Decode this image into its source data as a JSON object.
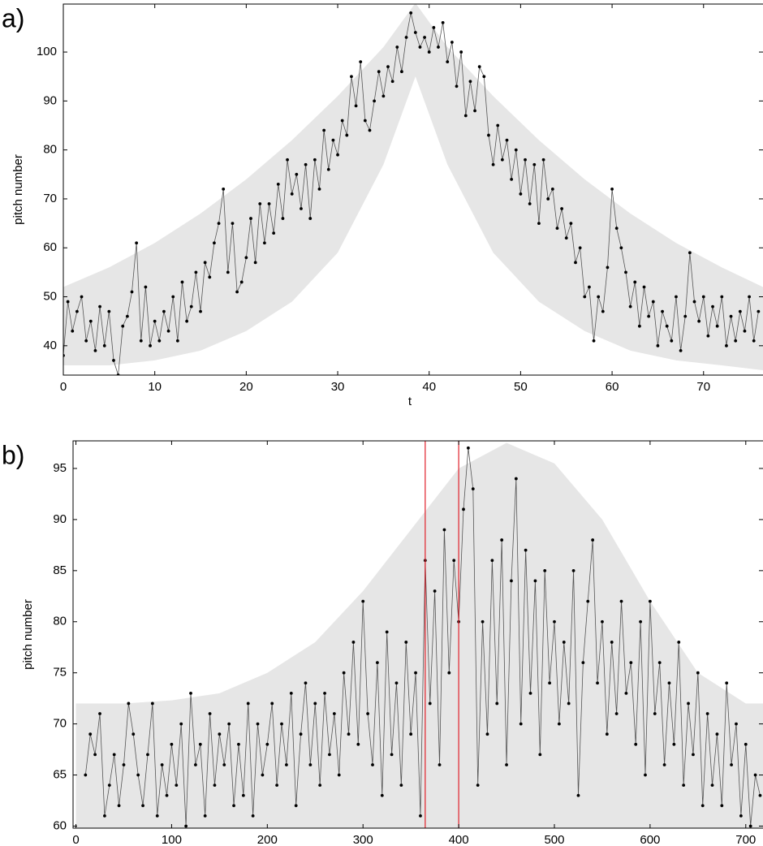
{
  "chart_data": [
    {
      "type": "line",
      "panel_label": "a)",
      "xlabel": "t",
      "ylabel": "pitch number",
      "xlim": [
        0,
        76.5
      ],
      "ylim": [
        34,
        109.8
      ],
      "xticks": [
        0,
        10,
        20,
        30,
        40,
        50,
        60,
        70
      ],
      "yticks": [
        40,
        50,
        60,
        70,
        80,
        90,
        100
      ],
      "band": {
        "color": "#e6e6e6",
        "x": [
          0,
          5,
          10,
          15,
          20,
          25,
          30,
          35,
          38.5,
          42,
          47,
          52,
          57,
          62,
          67,
          72,
          76.5
        ],
        "upper": [
          52,
          56,
          61,
          67,
          74,
          82,
          91,
          101,
          110,
          101,
          91,
          82,
          74,
          67,
          61,
          56,
          52
        ],
        "lower": [
          36,
          36,
          37,
          39,
          43,
          49,
          59,
          77,
          95,
          77,
          59,
          49,
          43,
          39,
          37,
          36,
          35
        ]
      },
      "x": [
        0,
        0.5,
        1,
        1.5,
        2,
        2.5,
        3,
        3.5,
        4,
        4.5,
        5,
        5.5,
        6,
        6.5,
        7,
        7.5,
        8,
        8.5,
        9,
        9.5,
        10,
        10.5,
        11,
        11.5,
        12,
        12.5,
        13,
        13.5,
        14,
        14.5,
        15,
        15.5,
        16,
        16.5,
        17,
        17.5,
        18,
        18.5,
        19,
        19.5,
        20,
        20.5,
        21,
        21.5,
        22,
        22.5,
        23,
        23.5,
        24,
        24.5,
        25,
        25.5,
        26,
        26.5,
        27,
        27.5,
        28,
        28.5,
        29,
        29.5,
        30,
        30.5,
        31,
        31.5,
        32,
        32.5,
        33,
        33.5,
        34,
        34.5,
        35,
        35.5,
        36,
        36.5,
        37,
        37.5,
        38,
        38.5,
        39,
        39.5,
        40,
        40.5,
        41,
        41.5,
        42,
        42.5,
        43,
        43.5,
        44,
        44.5,
        45,
        45.5,
        46,
        46.5,
        47,
        47.5,
        48,
        48.5,
        49,
        49.5,
        50,
        50.5,
        51,
        51.5,
        52,
        52.5,
        53,
        53.5,
        54,
        54.5,
        55,
        55.5,
        56,
        56.5,
        57,
        57.5,
        58,
        58.5,
        59,
        59.5,
        60,
        60.5,
        61,
        61.5,
        62,
        62.5,
        63,
        63.5,
        64,
        64.5,
        65,
        65.5,
        66,
        66.5,
        67,
        67.5,
        68,
        68.5,
        69,
        69.5,
        70,
        70.5,
        71,
        71.5,
        72,
        72.5,
        73,
        73.5,
        74,
        74.5,
        75,
        75.5,
        76
      ],
      "series": [
        {
          "color": "#000000",
          "values": [
            38,
            49,
            43,
            47,
            50,
            41,
            45,
            39,
            48,
            40,
            47,
            37,
            34,
            44,
            46,
            51,
            61,
            41,
            52,
            40,
            45,
            41,
            47,
            43,
            50,
            41,
            53,
            45,
            48,
            55,
            47,
            57,
            54,
            61,
            65,
            72,
            55,
            65,
            51,
            53,
            58,
            66,
            57,
            69,
            61,
            69,
            63,
            73,
            66,
            78,
            71,
            75,
            68,
            77,
            66,
            78,
            72,
            84,
            76,
            82,
            79,
            86,
            83,
            95,
            89,
            98,
            86,
            84,
            90,
            96,
            91,
            97,
            94,
            101,
            96,
            103,
            108,
            104,
            101,
            103,
            100,
            105,
            101,
            106,
            98,
            102,
            93,
            100,
            87,
            94,
            88,
            97,
            95,
            83,
            77,
            85,
            78,
            82,
            74,
            80,
            71,
            78,
            69,
            77,
            65,
            78,
            70,
            72,
            64,
            68,
            62,
            65,
            57,
            60,
            50,
            52,
            41,
            50,
            47,
            56,
            72,
            64,
            60,
            55,
            48,
            53,
            44,
            52,
            46,
            49,
            40,
            47,
            44,
            41,
            50,
            39,
            46,
            59,
            49,
            45,
            50,
            42,
            48,
            44,
            50,
            40,
            46,
            41,
            47,
            43,
            50,
            41,
            47
          ]
        }
      ]
    },
    {
      "type": "line",
      "panel_label": "b)",
      "xlabel": "t",
      "ylabel": "pitch number",
      "xlim": [
        -3,
        718
      ],
      "ylim": [
        59.8,
        97.7
      ],
      "xticks": [
        0,
        100,
        200,
        300,
        400,
        500,
        600,
        700
      ],
      "yticks": [
        60,
        65,
        70,
        75,
        80,
        85,
        90,
        95
      ],
      "band": {
        "color": "#e6e6e6",
        "x": [
          0,
          50,
          100,
          150,
          200,
          250,
          300,
          350,
          400,
          450,
          500,
          550,
          600,
          650,
          700,
          718
        ],
        "upper": [
          72,
          72,
          72.3,
          73,
          75,
          78,
          83,
          89,
          95,
          97.5,
          95.5,
          90,
          82,
          75,
          72,
          72
        ],
        "lower": [
          59.8,
          59.8,
          59.8,
          59.8,
          59.8,
          59.8,
          59.8,
          59.8,
          59.8,
          59.8,
          59.8,
          59.8,
          59.8,
          59.8,
          59.8,
          59.8
        ]
      },
      "vlines": {
        "color": "#e0202a",
        "values": [
          365,
          400
        ]
      },
      "x": [
        10,
        15,
        20,
        25,
        30,
        35,
        40,
        45,
        50,
        55,
        60,
        65,
        70,
        75,
        80,
        85,
        90,
        95,
        100,
        105,
        110,
        115,
        120,
        125,
        130,
        135,
        140,
        145,
        150,
        155,
        160,
        165,
        170,
        175,
        180,
        185,
        190,
        195,
        200,
        205,
        210,
        215,
        220,
        225,
        230,
        235,
        240,
        245,
        250,
        255,
        260,
        265,
        270,
        275,
        280,
        285,
        290,
        295,
        300,
        305,
        310,
        315,
        320,
        325,
        330,
        335,
        340,
        345,
        350,
        355,
        360,
        365,
        370,
        375,
        380,
        385,
        390,
        395,
        400,
        405,
        410,
        415,
        420,
        425,
        430,
        435,
        440,
        445,
        450,
        455,
        460,
        465,
        470,
        475,
        480,
        485,
        490,
        495,
        500,
        505,
        510,
        515,
        520,
        525,
        530,
        535,
        540,
        545,
        550,
        555,
        560,
        565,
        570,
        575,
        580,
        585,
        590,
        595,
        600,
        605,
        610,
        615,
        620,
        625,
        630,
        635,
        640,
        645,
        650,
        655,
        660,
        665,
        670,
        675,
        680,
        685,
        690,
        695,
        700,
        705,
        710,
        715
      ],
      "series": [
        {
          "color": "#000000",
          "values": [
            65,
            69,
            67,
            71,
            61,
            64,
            67,
            62,
            66,
            72,
            69,
            65,
            62,
            67,
            72,
            61,
            66,
            63,
            68,
            64,
            70,
            60,
            73,
            66,
            68,
            61,
            71,
            64,
            69,
            66,
            70,
            62,
            68,
            63,
            72,
            61,
            70,
            65,
            68,
            72,
            64,
            70,
            66,
            73,
            62,
            69,
            74,
            66,
            72,
            64,
            73,
            67,
            71,
            65,
            75,
            69,
            78,
            68,
            82,
            71,
            66,
            76,
            63,
            79,
            67,
            74,
            64,
            78,
            69,
            75,
            61,
            86,
            72,
            83,
            66,
            89,
            75,
            86,
            80,
            91,
            97,
            93,
            64,
            80,
            69,
            86,
            72,
            88,
            66,
            84,
            94,
            70,
            87,
            73,
            84,
            67,
            85,
            74,
            80,
            70,
            78,
            72,
            85,
            63,
            76,
            82,
            88,
            74,
            80,
            69,
            78,
            71,
            82,
            73,
            76,
            68,
            80,
            65,
            82,
            71,
            76,
            66,
            74,
            68,
            78,
            64,
            72,
            67,
            75,
            62,
            71,
            64,
            69,
            62,
            74,
            66,
            70,
            61,
            68,
            60,
            65,
            63
          ]
        }
      ]
    }
  ]
}
